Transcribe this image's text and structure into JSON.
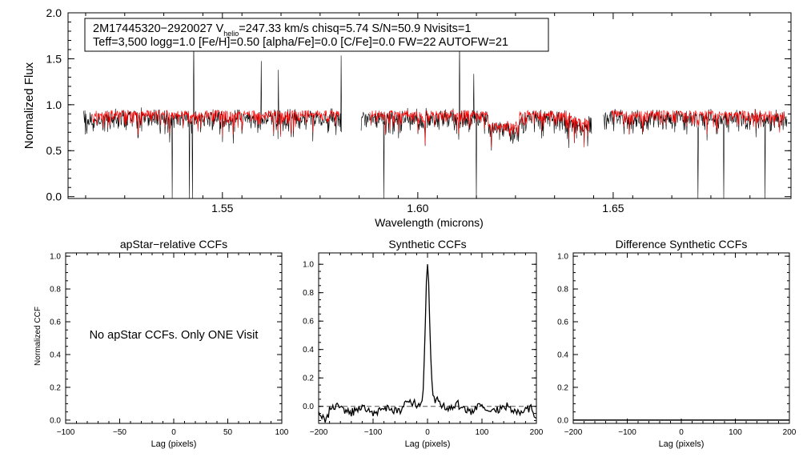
{
  "chart_data": [
    {
      "type": "line",
      "panel": "spectrum",
      "xlabel": "Wavelength (microns)",
      "ylabel": "Normalized Flux",
      "xlim": [
        1.5105,
        1.6955
      ],
      "ylim": [
        -0.02,
        2.0
      ],
      "xticks": [
        "1.55",
        "1.60",
        "1.65"
      ],
      "xtick_values": [
        1.55,
        1.6,
        1.65
      ],
      "yticks": [
        "0.0",
        "0.5",
        "1.0",
        "1.5",
        "2.0"
      ],
      "ytick_values": [
        0.0,
        0.5,
        1.0,
        1.5,
        2.0
      ],
      "annotation": {
        "line1_prefix": "2M17445320−2920027  V",
        "line1_sub": "helio",
        "line1_suffix": "=247.33 km/s  chisq=5.74  S/N=50.9  Nvisits=1",
        "line2": "Teff=3,500 logg=1.0 [Fe/H]=0.50 [alpha/Fe]=0.0 [C/Fe]=0.0 FW=22 AUTOFW=21"
      },
      "chip_ranges": [
        [
          1.5145,
          1.5805
        ],
        [
          1.5855,
          1.6445
        ],
        [
          1.6475,
          1.6945
        ]
      ],
      "continuum_level": 0.9,
      "series": [
        {
          "name": "observed",
          "color": "#000000"
        },
        {
          "name": "synthetic",
          "color": "#ff0000"
        }
      ]
    },
    {
      "type": "line",
      "panel": "apstar",
      "title": "apStar−relative CCFs",
      "xlabel": "Lag (pixels)",
      "ylabel": "Normalized CCF",
      "xlim": [
        -100,
        100
      ],
      "ylim": [
        -0.02,
        1.02
      ],
      "xticks": [
        "−100",
        "−50",
        "0",
        "50",
        "100"
      ],
      "xtick_values": [
        -100,
        -50,
        0,
        50,
        100
      ],
      "yticks": [
        "0.0",
        "0.2",
        "0.4",
        "0.6",
        "0.8",
        "1.0"
      ],
      "ytick_values": [
        0,
        0.2,
        0.4,
        0.6,
        0.8,
        1.0
      ],
      "message": "No apStar CCFs.  Only ONE Visit"
    },
    {
      "type": "line",
      "panel": "synthetic",
      "title": "Synthetic CCFs",
      "xlabel": "Lag (pixels)",
      "xlim": [
        -200,
        200
      ],
      "ylim": [
        -0.12,
        1.08
      ],
      "xticks": [
        "−200",
        "−100",
        "0",
        "100",
        "200"
      ],
      "xtick_values": [
        -200,
        -100,
        0,
        100,
        200
      ],
      "yticks": [
        "0.0",
        "0.2",
        "0.4",
        "0.6",
        "0.8",
        "1.0"
      ],
      "ytick_values": [
        0,
        0.2,
        0.4,
        0.6,
        0.8,
        1.0
      ],
      "peak": {
        "lag": 0,
        "value": 1.0
      },
      "baseline": 0.0,
      "series": [
        {
          "name": "Synthetic CCF",
          "color": "#000000"
        }
      ]
    },
    {
      "type": "line",
      "panel": "difference",
      "title": "Difference Synthetic CCFs",
      "xlabel": "Lag (pixels)",
      "xlim": [
        -200,
        200
      ],
      "ylim": [
        -0.02,
        1.02
      ],
      "xticks": [
        "−200",
        "−100",
        "0",
        "100",
        "200"
      ],
      "xtick_values": [
        -200,
        -100,
        0,
        100,
        200
      ],
      "yticks": [
        "0.0",
        "0.2",
        "0.4",
        "0.6",
        "0.8",
        "1.0"
      ],
      "ytick_values": [
        0,
        0.2,
        0.4,
        0.6,
        0.8,
        1.0
      ],
      "baseline": 0.0
    }
  ]
}
